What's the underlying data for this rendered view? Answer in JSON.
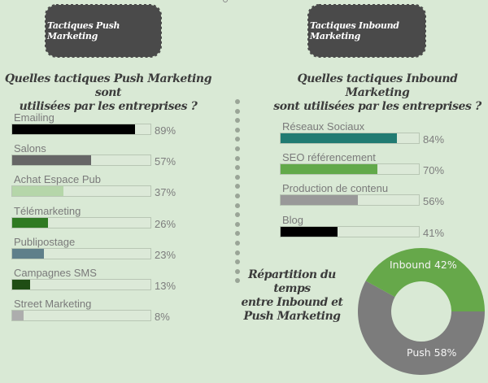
{
  "left": {
    "badge": "Tactiques Push Marketing",
    "question_line1": "Quelles tactiques Push Marketing sont",
    "question_line2": "utilisées par les entreprises ?",
    "items": [
      {
        "label": "Emailing",
        "value": 89,
        "display": "89%",
        "color": "#000000"
      },
      {
        "label": "Salons",
        "value": 57,
        "display": "57%",
        "color": "#666666"
      },
      {
        "label": "Achat Espace Pub",
        "value": 37,
        "display": "37%",
        "color": "#b5d6a9"
      },
      {
        "label": "Télémarketing",
        "value": 26,
        "display": "26%",
        "color": "#2f7a22"
      },
      {
        "label": "Publipostage",
        "value": 23,
        "display": "23%",
        "color": "#5f7f8a"
      },
      {
        "label": "Campagnes SMS",
        "value": 13,
        "display": "13%",
        "color": "#1f4d14"
      },
      {
        "label": "Street Marketing",
        "value": 8,
        "display": "8%",
        "color": "#adadad"
      }
    ]
  },
  "right": {
    "badge": "Tactiques Inbound Marketing",
    "question_line1": "Quelles tactiques Inbound Marketing",
    "question_line2": "sont utilisées par les entreprises ?",
    "items": [
      {
        "label": "Réseaux Sociaux",
        "value": 84,
        "display": "84%",
        "color": "#217b72"
      },
      {
        "label": "SEO référencement",
        "value": 70,
        "display": "70%",
        "color": "#62a94a"
      },
      {
        "label": "Production de contenu",
        "value": 56,
        "display": "56%",
        "color": "#999999"
      },
      {
        "label": "Blog",
        "value": 41,
        "display": "41%",
        "color": "#000000"
      }
    ]
  },
  "donut": {
    "title_line1": "Répartition du temps",
    "title_line2": "entre Inbound et",
    "title_line3": "Push Marketing",
    "inbound_label": "Inbound 42%",
    "push_label": "Push 58%",
    "inbound_color": "#66a84a",
    "push_color": "#7c7c7c"
  },
  "chart_data": [
    {
      "type": "bar",
      "title": "Quelles tactiques Push Marketing sont utilisées par les entreprises ?",
      "orientation": "horizontal",
      "categories": [
        "Emailing",
        "Salons",
        "Achat Espace Pub",
        "Télémarketing",
        "Publipostage",
        "Campagnes SMS",
        "Street Marketing"
      ],
      "values": [
        89,
        57,
        37,
        26,
        23,
        13,
        8
      ],
      "unit": "%",
      "xlim": [
        0,
        100
      ]
    },
    {
      "type": "bar",
      "title": "Quelles tactiques Inbound Marketing sont utilisées par les entreprises ?",
      "orientation": "horizontal",
      "categories": [
        "Réseaux Sociaux",
        "SEO référencement",
        "Production de contenu",
        "Blog"
      ],
      "values": [
        84,
        70,
        56,
        41
      ],
      "unit": "%",
      "xlim": [
        0,
        100
      ]
    },
    {
      "type": "pie",
      "subtype": "donut",
      "title": "Répartition du temps entre Inbound et Push Marketing",
      "categories": [
        "Inbound",
        "Push"
      ],
      "values": [
        42,
        58
      ],
      "unit": "%"
    }
  ]
}
